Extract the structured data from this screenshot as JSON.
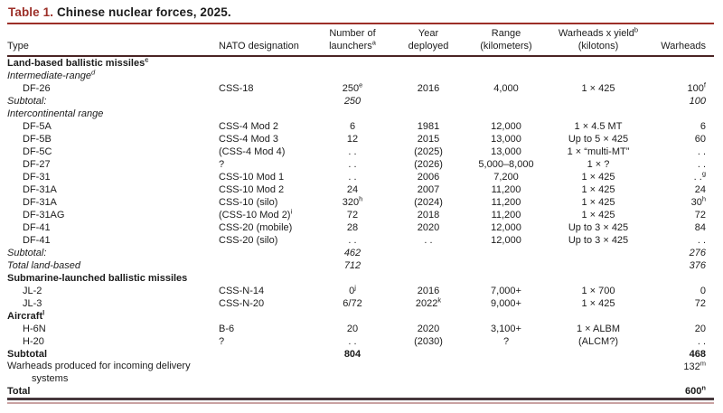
{
  "title": {
    "label": "Table 1.",
    "text": "Chinese nuclear forces, 2025."
  },
  "colors": {
    "accent_maroon": "#9c2f28",
    "header_rule": "#4a2424",
    "bottom_rule_dark": "#46383c",
    "bottom_rule_pink": "#c9a2a2",
    "text": "#1c1c1c",
    "background": "#ffffff"
  },
  "columns": [
    {
      "key": "type",
      "lines": [
        "Type"
      ]
    },
    {
      "key": "nato",
      "lines": [
        "NATO designation"
      ]
    },
    {
      "key": "launchers",
      "lines": [
        "Number of",
        "launchers^a"
      ]
    },
    {
      "key": "year",
      "lines": [
        "Year",
        "deployed"
      ]
    },
    {
      "key": "range",
      "lines": [
        "Range",
        "(kilometers)"
      ]
    },
    {
      "key": "yield",
      "lines": [
        "Warheads x yield^b",
        "(kilotons)"
      ]
    },
    {
      "key": "warheads",
      "lines": [
        "Warheads"
      ]
    }
  ],
  "rows": [
    {
      "style": "section",
      "type": "Land-based ballistic missiles^c"
    },
    {
      "style": "subsection",
      "type": "Intermediate-range^d"
    },
    {
      "style": "item",
      "type": "DF-26",
      "nato": "CSS-18",
      "launchers": "250^e",
      "year": "2016",
      "range": "4,000",
      "yield": "1 × 425",
      "warheads": "100^f"
    },
    {
      "style": "subtotal",
      "type": "Subtotal:",
      "launchers": "250",
      "warheads": "100"
    },
    {
      "style": "subsection",
      "type": "Intercontinental range"
    },
    {
      "style": "item",
      "type": "DF-5A",
      "nato": "CSS-4 Mod 2",
      "launchers": "6",
      "year": "1981",
      "range": "12,000",
      "yield": "1 × 4.5 MT",
      "warheads": "6"
    },
    {
      "style": "item",
      "type": "DF-5B",
      "nato": "CSS-4 Mod 3",
      "launchers": "12",
      "year": "2015",
      "range": "13,000",
      "yield": "Up to 5 × 425",
      "warheads": "60"
    },
    {
      "style": "item",
      "type": "DF-5C",
      "nato": "(CSS-4 Mod 4)",
      "launchers": ". .",
      "year": "(2025)",
      "range": "13,000",
      "yield": "1 × “multi-MT”",
      "warheads": ". ."
    },
    {
      "style": "item",
      "type": "DF-27",
      "nato": "?",
      "launchers": ". .",
      "year": "(2026)",
      "range": "5,000–8,000",
      "yield": "1 × ?",
      "warheads": ". ."
    },
    {
      "style": "item",
      "type": "DF-31",
      "nato": "CSS-10 Mod 1",
      "launchers": ". .",
      "year": "2006",
      "range": "7,200",
      "yield": "1 × 425",
      "warheads": ". .^g"
    },
    {
      "style": "item",
      "type": "DF-31A",
      "nato": "CSS-10 Mod 2",
      "launchers": "24",
      "year": "2007",
      "range": "11,200",
      "yield": "1 × 425",
      "warheads": "24"
    },
    {
      "style": "item",
      "type": "DF-31A",
      "nato": "CSS-10 (silo)",
      "launchers": "320^h",
      "year": "(2024)",
      "range": "11,200",
      "yield": "1 × 425",
      "warheads": "30^h"
    },
    {
      "style": "item",
      "type": "DF-31AG",
      "nato": "(CSS-10 Mod 2)^i",
      "launchers": "72",
      "year": "2018",
      "range": "11,200",
      "yield": "1 × 425",
      "warheads": "72"
    },
    {
      "style": "item",
      "type": "DF-41",
      "nato": "CSS-20 (mobile)",
      "launchers": "28",
      "year": "2020",
      "range": "12,000",
      "yield": "Up to 3 × 425",
      "warheads": "84"
    },
    {
      "style": "item",
      "type": "DF-41",
      "nato": "CSS-20 (silo)",
      "launchers": ". .",
      "year": ". .",
      "range": "12,000",
      "yield": "Up to 3 × 425",
      "warheads": ". ."
    },
    {
      "style": "subtotal",
      "type": "Subtotal:",
      "launchers": "462",
      "warheads": "276"
    },
    {
      "style": "subtotal",
      "type": "Total land-based",
      "launchers": "712",
      "warheads": "376"
    },
    {
      "style": "section",
      "type": "Submarine-launched ballistic missiles"
    },
    {
      "style": "item",
      "type": "JL-2",
      "nato": "CSS-N-14",
      "launchers": "0^j",
      "year": "2016",
      "range": "7,000+",
      "yield": "1 × 700",
      "warheads": "0"
    },
    {
      "style": "item",
      "type": "JL-3",
      "nato": "CSS-N-20",
      "launchers": "6/72",
      "year": "2022^k",
      "range": "9,000+",
      "yield": "1 × 425",
      "warheads": "72"
    },
    {
      "style": "section",
      "type": "Aircraft^l"
    },
    {
      "style": "item",
      "type": "H-6N",
      "nato": "B-6",
      "launchers": "20",
      "year": "2020",
      "range": "3,100+",
      "yield": "1 × ALBM",
      "warheads": "20"
    },
    {
      "style": "item",
      "type": "H-20",
      "nato": "?",
      "launchers": ". .",
      "year": "(2030)",
      "range": "?",
      "yield": "(ALCM?)",
      "warheads": ". ."
    },
    {
      "style": "grand",
      "type": "Subtotal",
      "launchers": "804",
      "warheads": "468"
    },
    {
      "style": "note",
      "type": "Warheads produced for incoming delivery systems",
      "warheads": "132^m"
    },
    {
      "style": "grand",
      "type": "Total",
      "warheads": "600^n"
    }
  ]
}
